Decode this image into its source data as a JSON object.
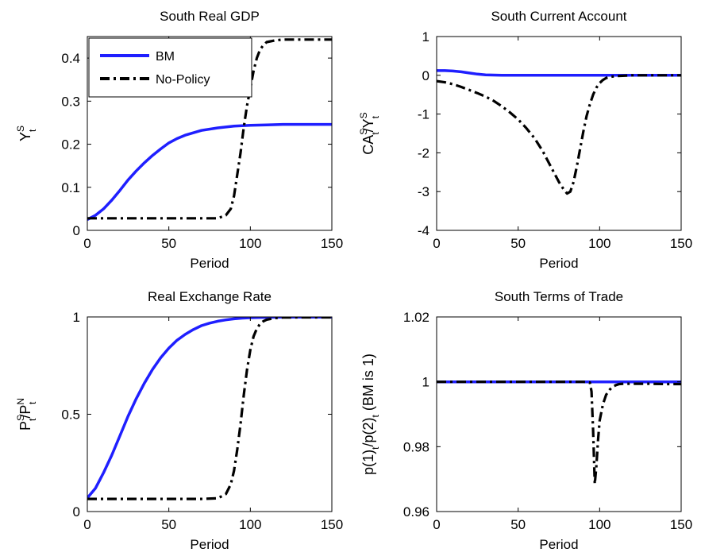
{
  "chart_data": [
    {
      "type": "line",
      "title": "South Real GDP",
      "xlabel": "Period",
      "ylabel": {
        "main": "Y",
        "sup": "S",
        "sub": "t"
      },
      "xlim": [
        0,
        150
      ],
      "ylim": [
        0,
        0.45
      ],
      "xticks": [
        0,
        50,
        100,
        150
      ],
      "xtick_labels": [
        "0",
        "50",
        "100",
        "150"
      ],
      "yticks": [
        0,
        0.1,
        0.2,
        0.3,
        0.4
      ],
      "ytick_labels": [
        "0",
        "0.1",
        "0.2",
        "0.3",
        "0.4"
      ],
      "grid": false,
      "legend": {
        "placement": "top-left",
        "entries": [
          "BM",
          "No-Policy"
        ]
      },
      "series": [
        {
          "name": "BM",
          "color": "#1f1fff",
          "style": "solid",
          "x": [
            0,
            5,
            10,
            15,
            20,
            25,
            30,
            35,
            40,
            45,
            50,
            55,
            60,
            70,
            80,
            90,
            100,
            110,
            120,
            130,
            140,
            150
          ],
          "y": [
            0.025,
            0.035,
            0.05,
            0.07,
            0.093,
            0.117,
            0.138,
            0.157,
            0.174,
            0.189,
            0.203,
            0.213,
            0.221,
            0.232,
            0.238,
            0.242,
            0.244,
            0.245,
            0.246,
            0.246,
            0.246,
            0.246
          ]
        },
        {
          "name": "No-Policy",
          "color": "#000000",
          "style": "dashdot",
          "x": [
            0,
            10,
            20,
            30,
            40,
            50,
            60,
            70,
            80,
            85,
            88,
            90,
            92,
            94,
            96,
            98,
            100,
            102,
            104,
            106,
            108,
            110,
            115,
            120,
            130,
            140,
            150
          ],
          "y": [
            0.028,
            0.028,
            0.028,
            0.028,
            0.028,
            0.028,
            0.028,
            0.028,
            0.028,
            0.035,
            0.05,
            0.08,
            0.13,
            0.18,
            0.24,
            0.29,
            0.33,
            0.37,
            0.4,
            0.42,
            0.43,
            0.437,
            0.441,
            0.443,
            0.443,
            0.443,
            0.443
          ]
        }
      ]
    },
    {
      "type": "line",
      "title": "South Current Account",
      "xlabel": "Period",
      "ylabel": {
        "main": "CA",
        "sup": "S",
        "sub": "t",
        "main2": "/Y",
        "sup2": "S",
        "sub2": "t"
      },
      "xlim": [
        0,
        150
      ],
      "ylim": [
        -4,
        1
      ],
      "xticks": [
        0,
        50,
        100,
        150
      ],
      "xtick_labels": [
        "0",
        "50",
        "100",
        "150"
      ],
      "yticks": [
        -4,
        -3,
        -2,
        -1,
        0,
        1
      ],
      "ytick_labels": [
        "-4",
        "-3",
        "-2",
        "-1",
        "0",
        "1"
      ],
      "grid": false,
      "series": [
        {
          "name": "BM",
          "color": "#1f1fff",
          "style": "solid",
          "x": [
            0,
            5,
            10,
            15,
            20,
            25,
            30,
            40,
            60,
            80,
            100,
            120,
            150
          ],
          "y": [
            0.12,
            0.12,
            0.11,
            0.09,
            0.06,
            0.03,
            0.01,
            0.0,
            0.0,
            0.0,
            0.0,
            0.0,
            0.0
          ]
        },
        {
          "name": "No-Policy",
          "color": "#000000",
          "style": "dashdot",
          "x": [
            0,
            5,
            10,
            15,
            20,
            25,
            30,
            35,
            40,
            45,
            50,
            55,
            60,
            65,
            70,
            75,
            78,
            80,
            82,
            84,
            86,
            88,
            90,
            92,
            94,
            96,
            98,
            100,
            102,
            104,
            106,
            110,
            120,
            130,
            140,
            150
          ],
          "y": [
            -0.15,
            -0.18,
            -0.23,
            -0.3,
            -0.38,
            -0.46,
            -0.55,
            -0.66,
            -0.8,
            -0.96,
            -1.14,
            -1.36,
            -1.62,
            -1.95,
            -2.35,
            -2.75,
            -2.95,
            -3.05,
            -3.0,
            -2.75,
            -2.35,
            -1.9,
            -1.45,
            -1.05,
            -0.75,
            -0.5,
            -0.32,
            -0.2,
            -0.12,
            -0.07,
            -0.04,
            -0.02,
            0.0,
            0.0,
            0.0,
            0.0
          ]
        }
      ]
    },
    {
      "type": "line",
      "title": "Real Exchange Rate",
      "xlabel": "Period",
      "ylabel": {
        "main": "P",
        "sup": "S",
        "sub": "t",
        "main2": "/P",
        "sup2": "N",
        "sub2": "t"
      },
      "xlim": [
        0,
        150
      ],
      "ylim": [
        0,
        1
      ],
      "xticks": [
        0,
        50,
        100,
        150
      ],
      "xtick_labels": [
        "0",
        "50",
        "100",
        "150"
      ],
      "yticks": [
        0,
        0.5,
        1
      ],
      "ytick_labels": [
        "0",
        "0.5",
        "1"
      ],
      "grid": false,
      "series": [
        {
          "name": "BM",
          "color": "#1f1fff",
          "style": "solid",
          "x": [
            0,
            5,
            10,
            15,
            20,
            25,
            30,
            35,
            40,
            45,
            50,
            55,
            60,
            65,
            70,
            75,
            80,
            85,
            90,
            95,
            100,
            110,
            120,
            130,
            140,
            150
          ],
          "y": [
            0.07,
            0.12,
            0.2,
            0.29,
            0.39,
            0.49,
            0.58,
            0.66,
            0.73,
            0.79,
            0.84,
            0.88,
            0.91,
            0.935,
            0.955,
            0.968,
            0.978,
            0.985,
            0.99,
            0.994,
            0.996,
            0.998,
            0.999,
            0.999,
            0.999,
            0.999
          ]
        },
        {
          "name": "No-Policy",
          "color": "#000000",
          "style": "dashdot",
          "x": [
            0,
            10,
            20,
            30,
            40,
            50,
            60,
            70,
            80,
            85,
            88,
            90,
            92,
            94,
            96,
            98,
            100,
            102,
            104,
            106,
            108,
            110,
            115,
            120,
            130,
            140,
            150
          ],
          "y": [
            0.065,
            0.065,
            0.065,
            0.065,
            0.065,
            0.065,
            0.065,
            0.065,
            0.068,
            0.09,
            0.14,
            0.21,
            0.32,
            0.45,
            0.6,
            0.73,
            0.83,
            0.9,
            0.94,
            0.965,
            0.978,
            0.986,
            0.994,
            0.997,
            0.998,
            0.998,
            0.998
          ]
        }
      ]
    },
    {
      "type": "line",
      "title": "South Terms of Trade",
      "xlabel": "Period",
      "ylabel": {
        "main": "p(1)",
        "sub": "t",
        "main2": "/p(2)",
        "sub2": "t",
        "tail": " (BM is 1)"
      },
      "xlim": [
        0,
        150
      ],
      "ylim": [
        0.96,
        1.02
      ],
      "xticks": [
        0,
        50,
        100,
        150
      ],
      "xtick_labels": [
        "0",
        "50",
        "100",
        "150"
      ],
      "yticks": [
        0.96,
        0.98,
        1,
        1.02
      ],
      "ytick_labels": [
        "0.96",
        "0.98",
        "1",
        "1.02"
      ],
      "grid": false,
      "series": [
        {
          "name": "BM",
          "color": "#1f1fff",
          "style": "solid",
          "x": [
            0,
            150
          ],
          "y": [
            1.0,
            1.0
          ]
        },
        {
          "name": "No-Policy",
          "color": "#000000",
          "style": "dashdot",
          "x": [
            0,
            20,
            40,
            60,
            80,
            90,
            94,
            95,
            96,
            97,
            98,
            99,
            100,
            102,
            104,
            106,
            108,
            110,
            112,
            115,
            120,
            130,
            140,
            150
          ],
          "y": [
            1.0,
            1.0,
            1.0,
            1.0,
            1.0,
            1.0,
            0.9998,
            0.997,
            0.985,
            0.9685,
            0.974,
            0.982,
            0.988,
            0.993,
            0.996,
            0.9975,
            0.9985,
            0.999,
            0.9993,
            0.9994,
            0.9994,
            0.9994,
            0.9993,
            0.9993
          ]
        }
      ]
    }
  ]
}
